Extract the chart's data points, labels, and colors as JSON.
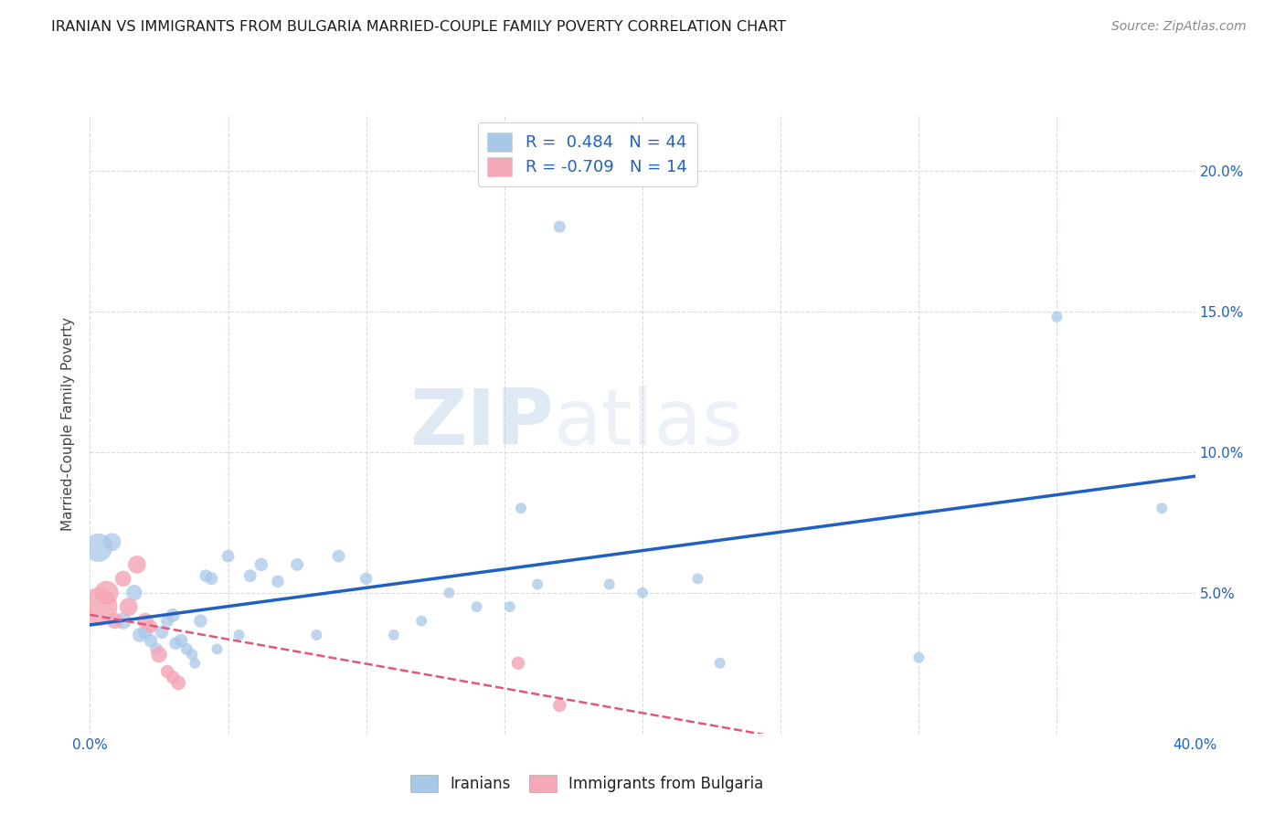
{
  "title": "IRANIAN VS IMMIGRANTS FROM BULGARIA MARRIED-COUPLE FAMILY POVERTY CORRELATION CHART",
  "source": "Source: ZipAtlas.com",
  "ylabel": "Married-Couple Family Poverty",
  "xlim": [
    0.0,
    0.4
  ],
  "ylim": [
    0.0,
    0.22
  ],
  "xticks": [
    0.0,
    0.05,
    0.1,
    0.15,
    0.2,
    0.25,
    0.3,
    0.35,
    0.4
  ],
  "yticks": [
    0.0,
    0.05,
    0.1,
    0.15,
    0.2
  ],
  "ytick_labels": [
    "",
    "5.0%",
    "10.0%",
    "15.0%",
    "20.0%"
  ],
  "xtick_labels": [
    "0.0%",
    "",
    "",
    "",
    "",
    "",
    "",
    "",
    "40.0%"
  ],
  "iranian_R": 0.484,
  "iranian_N": 44,
  "bulgarian_R": -0.709,
  "bulgarian_N": 14,
  "blue_color": "#a8c8e8",
  "pink_color": "#f4a8b8",
  "blue_line_color": "#2060c0",
  "pink_line_color": "#e05878",
  "grid_color": "#d0dce8",
  "background_color": "#ffffff",
  "watermark_zip": "ZIP",
  "watermark_atlas": "atlas",
  "iranians_x": [
    0.003,
    0.008,
    0.012,
    0.016,
    0.018,
    0.02,
    0.022,
    0.024,
    0.026,
    0.028,
    0.03,
    0.031,
    0.033,
    0.035,
    0.037,
    0.038,
    0.04,
    0.042,
    0.044,
    0.046,
    0.05,
    0.054,
    0.058,
    0.062,
    0.068,
    0.075,
    0.082,
    0.09,
    0.1,
    0.11,
    0.12,
    0.13,
    0.14,
    0.152,
    0.156,
    0.162,
    0.17,
    0.188,
    0.2,
    0.22,
    0.228,
    0.3,
    0.35,
    0.388
  ],
  "iranians_y": [
    0.066,
    0.068,
    0.04,
    0.05,
    0.035,
    0.036,
    0.033,
    0.03,
    0.036,
    0.04,
    0.042,
    0.032,
    0.033,
    0.03,
    0.028,
    0.025,
    0.04,
    0.056,
    0.055,
    0.03,
    0.063,
    0.035,
    0.056,
    0.06,
    0.054,
    0.06,
    0.035,
    0.063,
    0.055,
    0.035,
    0.04,
    0.05,
    0.045,
    0.045,
    0.08,
    0.053,
    0.18,
    0.053,
    0.05,
    0.055,
    0.025,
    0.027,
    0.148,
    0.08
  ],
  "iranians_size": [
    500,
    200,
    180,
    160,
    130,
    120,
    110,
    100,
    110,
    100,
    120,
    100,
    110,
    90,
    80,
    75,
    110,
    100,
    100,
    75,
    100,
    75,
    100,
    110,
    95,
    100,
    75,
    100,
    95,
    75,
    75,
    75,
    75,
    75,
    75,
    75,
    90,
    75,
    75,
    75,
    75,
    75,
    75,
    75
  ],
  "bulgarians_x": [
    0.003,
    0.006,
    0.009,
    0.012,
    0.014,
    0.017,
    0.02,
    0.022,
    0.025,
    0.028,
    0.03,
    0.032,
    0.155,
    0.17
  ],
  "bulgarians_y": [
    0.045,
    0.05,
    0.04,
    0.055,
    0.045,
    0.06,
    0.04,
    0.038,
    0.028,
    0.022,
    0.02,
    0.018,
    0.025,
    0.01
  ],
  "bulgarians_size": [
    900,
    350,
    160,
    160,
    200,
    200,
    160,
    110,
    160,
    110,
    110,
    130,
    110,
    110
  ]
}
